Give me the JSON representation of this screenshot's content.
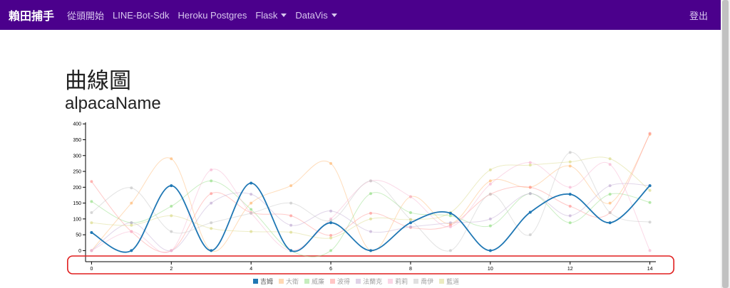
{
  "navbar": {
    "brand": "賴田捕手",
    "items": [
      {
        "label": "從頭開始",
        "dropdown": false
      },
      {
        "label": "LINE-Bot-Sdk",
        "dropdown": false
      },
      {
        "label": "Heroku Postgres",
        "dropdown": false
      },
      {
        "label": "Flask",
        "dropdown": true
      },
      {
        "label": "DataVis",
        "dropdown": true
      }
    ],
    "logout": "登出",
    "color": "#4b008c"
  },
  "page": {
    "title": "曲線圖",
    "subtitle": "alpacaName"
  },
  "chart_data": {
    "type": "line",
    "curve": "smooth",
    "x": [
      0,
      1,
      2,
      3,
      4,
      5,
      6,
      7,
      8,
      9,
      10,
      11,
      12,
      13,
      14
    ],
    "xticks": [
      "0",
      "2",
      "4",
      "6",
      "8",
      "10",
      "12",
      "14"
    ],
    "yticks": [
      "0",
      "50",
      "100",
      "150",
      "200",
      "250",
      "300",
      "350",
      "400"
    ],
    "ylim": [
      -35,
      405
    ],
    "xlim": [
      -0.15,
      14.15
    ],
    "highlight": {
      "x_range": [
        -0.6,
        14.6
      ],
      "label": ""
    },
    "series": [
      {
        "name": "吉姆",
        "color": "#1f77b4",
        "active": true,
        "values": [
          57,
          0,
          205,
          0,
          213,
          0,
          88,
          0,
          88,
          118,
          0,
          121,
          178,
          88,
          205
        ]
      },
      {
        "name": "大衛",
        "color": "#ffbb78",
        "active": false,
        "values": [
          0,
          150,
          290,
          0,
          150,
          205,
          275,
          0,
          170,
          85,
          220,
          200,
          267,
          150,
          367
        ]
      },
      {
        "name": "威廉",
        "color": "#98df8a",
        "active": false,
        "values": [
          155,
          88,
          140,
          220,
          130,
          0,
          0,
          180,
          120,
          110,
          78,
          180,
          88,
          178,
          152
        ]
      },
      {
        "name": "波得",
        "color": "#ff9896",
        "active": false,
        "values": [
          218,
          60,
          0,
          180,
          120,
          110,
          48,
          118,
          73,
          80,
          178,
          200,
          140,
          120,
          370
        ]
      },
      {
        "name": "法蘭克",
        "color": "#c5b0d5",
        "active": false,
        "values": [
          0,
          88,
          0,
          150,
          178,
          80,
          125,
          60,
          75,
          88,
          100,
          180,
          110,
          205,
          205
        ]
      },
      {
        "name": "莉莉",
        "color": "#f7b6d2",
        "active": false,
        "values": [
          0,
          60,
          0,
          255,
          118,
          0,
          100,
          220,
          170,
          75,
          210,
          278,
          200,
          272,
          0
        ]
      },
      {
        "name": "喬伊",
        "color": "#c7c7c7",
        "active": false,
        "values": [
          120,
          198,
          60,
          88,
          118,
          150,
          95,
          220,
          98,
          0,
          178,
          50,
          310,
          120,
          90
        ]
      },
      {
        "name": "藍道",
        "color": "#dbdb8d",
        "active": false,
        "values": [
          88,
          80,
          110,
          70,
          60,
          58,
          40,
          100,
          98,
          120,
          255,
          270,
          280,
          290,
          190
        ]
      }
    ]
  }
}
